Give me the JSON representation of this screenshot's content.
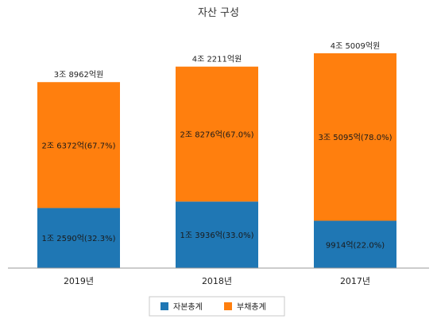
{
  "chart_data": {
    "type": "bar",
    "stacked": true,
    "title": "자산 구성",
    "categories": [
      "2019년",
      "2018년",
      "2017년"
    ],
    "unit": "억원",
    "series": [
      {
        "name": "자본총계",
        "color": "#1f77b4",
        "values": [
          12590,
          13936,
          9914
        ],
        "labels": [
          "1조 2590억(32.3%)",
          "1조 3936억(33.0%)",
          "9914억(22.0%)"
        ]
      },
      {
        "name": "부채총계",
        "color": "#ff7f0e",
        "values": [
          26372,
          28276,
          35095
        ],
        "labels": [
          "2조 6372억(67.7%)",
          "2조 8276억(67.0%)",
          "3조 5095억(78.0%)"
        ]
      }
    ],
    "totals": [
      38962,
      42211,
      45009
    ],
    "total_labels": [
      "3조 8962억원",
      "4조 2211억원",
      "4조 5009억원"
    ],
    "legend": "bottom",
    "grid": false
  }
}
